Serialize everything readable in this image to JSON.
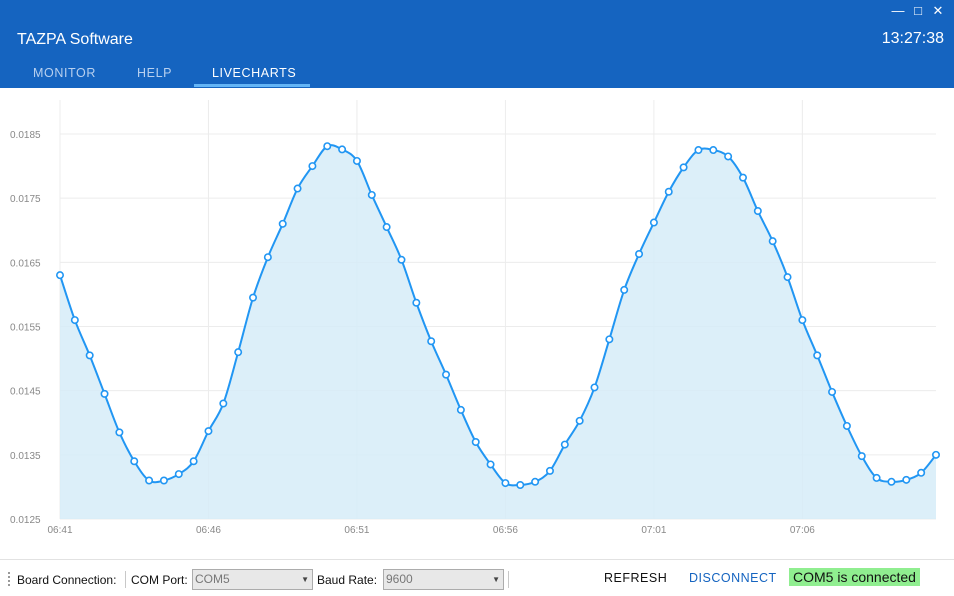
{
  "window": {
    "title": "TAZPA Software",
    "clock": "13:27:38",
    "controls": {
      "minimize": "—",
      "maximize": "□",
      "close": "✕"
    }
  },
  "tabs": [
    {
      "label": "MONITOR",
      "active": false
    },
    {
      "label": "HELP",
      "active": false
    },
    {
      "label": "LIVECHARTS",
      "active": true
    }
  ],
  "statusbar": {
    "board_connection_label": "Board Connection:",
    "com_port_label": "COM Port:",
    "com_port_value": "COM5",
    "baud_rate_label": "Baud Rate:",
    "baud_rate_value": "9600",
    "refresh_label": "REFRESH",
    "disconnect_label": "DISCONNECT",
    "status_message": "COM5 is connected"
  },
  "colors": {
    "accent": "#1564c0",
    "line": "#2196f3",
    "fill": "#d6ecf8",
    "connected_bg": "#90ee90"
  },
  "chart_data": {
    "type": "area",
    "x_ticks": [
      "06:41",
      "06:46",
      "06:51",
      "06:56",
      "07:01",
      "07:06"
    ],
    "y_ticks": [
      "0.0185",
      "0.0175",
      "0.0165",
      "0.0155",
      "0.0145",
      "0.0135",
      "0.0125"
    ],
    "ylim": [
      0.0125,
      0.0185
    ],
    "grid": true,
    "x_start_minute": 401,
    "x_step_minutes": 0.5,
    "values": [
      0.0163,
      0.0156,
      0.01505,
      0.01445,
      0.01385,
      0.0134,
      0.0131,
      0.0131,
      0.0132,
      0.0134,
      0.01387,
      0.0143,
      0.0151,
      0.01595,
      0.01658,
      0.0171,
      0.01765,
      0.018,
      0.01831,
      0.01826,
      0.01808,
      0.01755,
      0.01705,
      0.01654,
      0.01587,
      0.01527,
      0.01475,
      0.0142,
      0.0137,
      0.01335,
      0.01306,
      0.01303,
      0.01308,
      0.01325,
      0.01366,
      0.01403,
      0.01455,
      0.0153,
      0.01607,
      0.01663,
      0.01712,
      0.0176,
      0.01798,
      0.01825,
      0.01825,
      0.01815,
      0.01782,
      0.0173,
      0.01683,
      0.01627,
      0.0156,
      0.01505,
      0.01448,
      0.01395,
      0.01348,
      0.01314,
      0.01308,
      0.01311,
      0.01322,
      0.0135
    ]
  }
}
